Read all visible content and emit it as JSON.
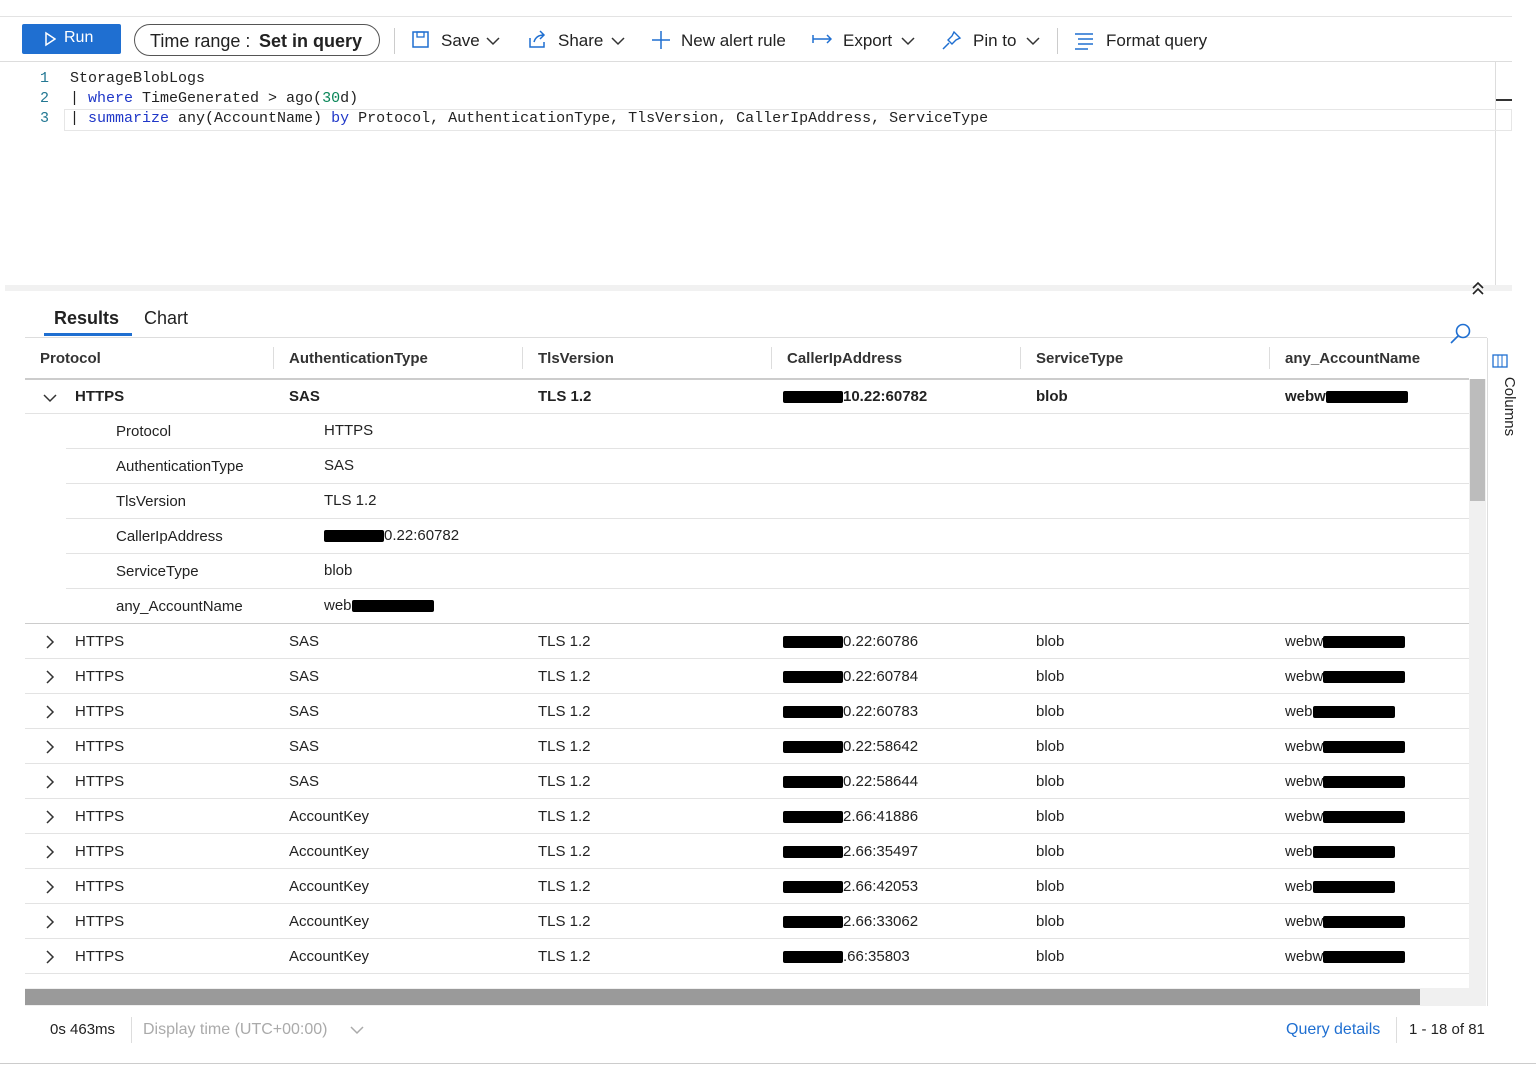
{
  "toolbar": {
    "run": "Run",
    "time_range_label": "Time range : ",
    "time_range_value": "Set in query",
    "buttons": [
      "Save",
      "Share",
      "New alert rule",
      "Export",
      "Pin to",
      "Format query"
    ]
  },
  "editor": {
    "line_numbers": [
      "1",
      "2",
      "3"
    ],
    "lines": [
      [
        {
          "t": "StorageBlobLogs",
          "k": "plain"
        }
      ],
      [
        {
          "t": "| ",
          "k": "plain"
        },
        {
          "t": "where",
          "k": "kw"
        },
        {
          "t": " TimeGenerated > ago(",
          "k": "plain"
        },
        {
          "t": "30",
          "k": "num"
        },
        {
          "t": "d)",
          "k": "plain"
        }
      ],
      [
        {
          "t": "| ",
          "k": "plain"
        },
        {
          "t": "summarize",
          "k": "kw"
        },
        {
          "t": " any(AccountName) ",
          "k": "plain"
        },
        {
          "t": "by",
          "k": "kw"
        },
        {
          "t": " Protocol, AuthenticationType, TlsVersion, CallerIpAddress, ServiceType",
          "k": "plain"
        }
      ]
    ]
  },
  "tabs": [
    "Results",
    "Chart"
  ],
  "side_panel": "Columns",
  "table": {
    "columns": [
      "Protocol",
      "AuthenticationType",
      "TlsVersion",
      "CallerIpAddress",
      "ServiceType",
      "any_AccountName"
    ],
    "expanded_row": [
      "HTTPS",
      "SAS",
      "TLS 1.2",
      "10.22:60782",
      "blob",
      "webw"
    ],
    "details": [
      [
        "Protocol",
        "HTTPS"
      ],
      [
        "AuthenticationType",
        "SAS"
      ],
      [
        "TlsVersion",
        "TLS 1.2"
      ],
      [
        "CallerIpAddress",
        "0.22:60782"
      ],
      [
        "ServiceType",
        "blob"
      ],
      [
        "any_AccountName",
        "web"
      ]
    ],
    "rows": [
      [
        "HTTPS",
        "SAS",
        "TLS 1.2",
        "0.22:60786",
        "blob",
        "webw"
      ],
      [
        "HTTPS",
        "SAS",
        "TLS 1.2",
        "0.22:60784",
        "blob",
        "webw"
      ],
      [
        "HTTPS",
        "SAS",
        "TLS 1.2",
        "0.22:60783",
        "blob",
        "web"
      ],
      [
        "HTTPS",
        "SAS",
        "TLS 1.2",
        "0.22:58642",
        "blob",
        "webw"
      ],
      [
        "HTTPS",
        "SAS",
        "TLS 1.2",
        "0.22:58644",
        "blob",
        "webw"
      ],
      [
        "HTTPS",
        "AccountKey",
        "TLS 1.2",
        "2.66:41886",
        "blob",
        "webw"
      ],
      [
        "HTTPS",
        "AccountKey",
        "TLS 1.2",
        "2.66:35497",
        "blob",
        "web"
      ],
      [
        "HTTPS",
        "AccountKey",
        "TLS 1.2",
        "2.66:42053",
        "blob",
        "web"
      ],
      [
        "HTTPS",
        "AccountKey",
        "TLS 1.2",
        "2.66:33062",
        "blob",
        "webw"
      ],
      [
        "HTTPS",
        "AccountKey",
        "TLS 1.2",
        ".66:35803",
        "blob",
        "webw"
      ]
    ]
  },
  "footer": {
    "duration": "0s 463ms",
    "display_time": "Display time (UTC+00:00)",
    "query_details": "Query details",
    "count": "1 - 18 of 81"
  }
}
